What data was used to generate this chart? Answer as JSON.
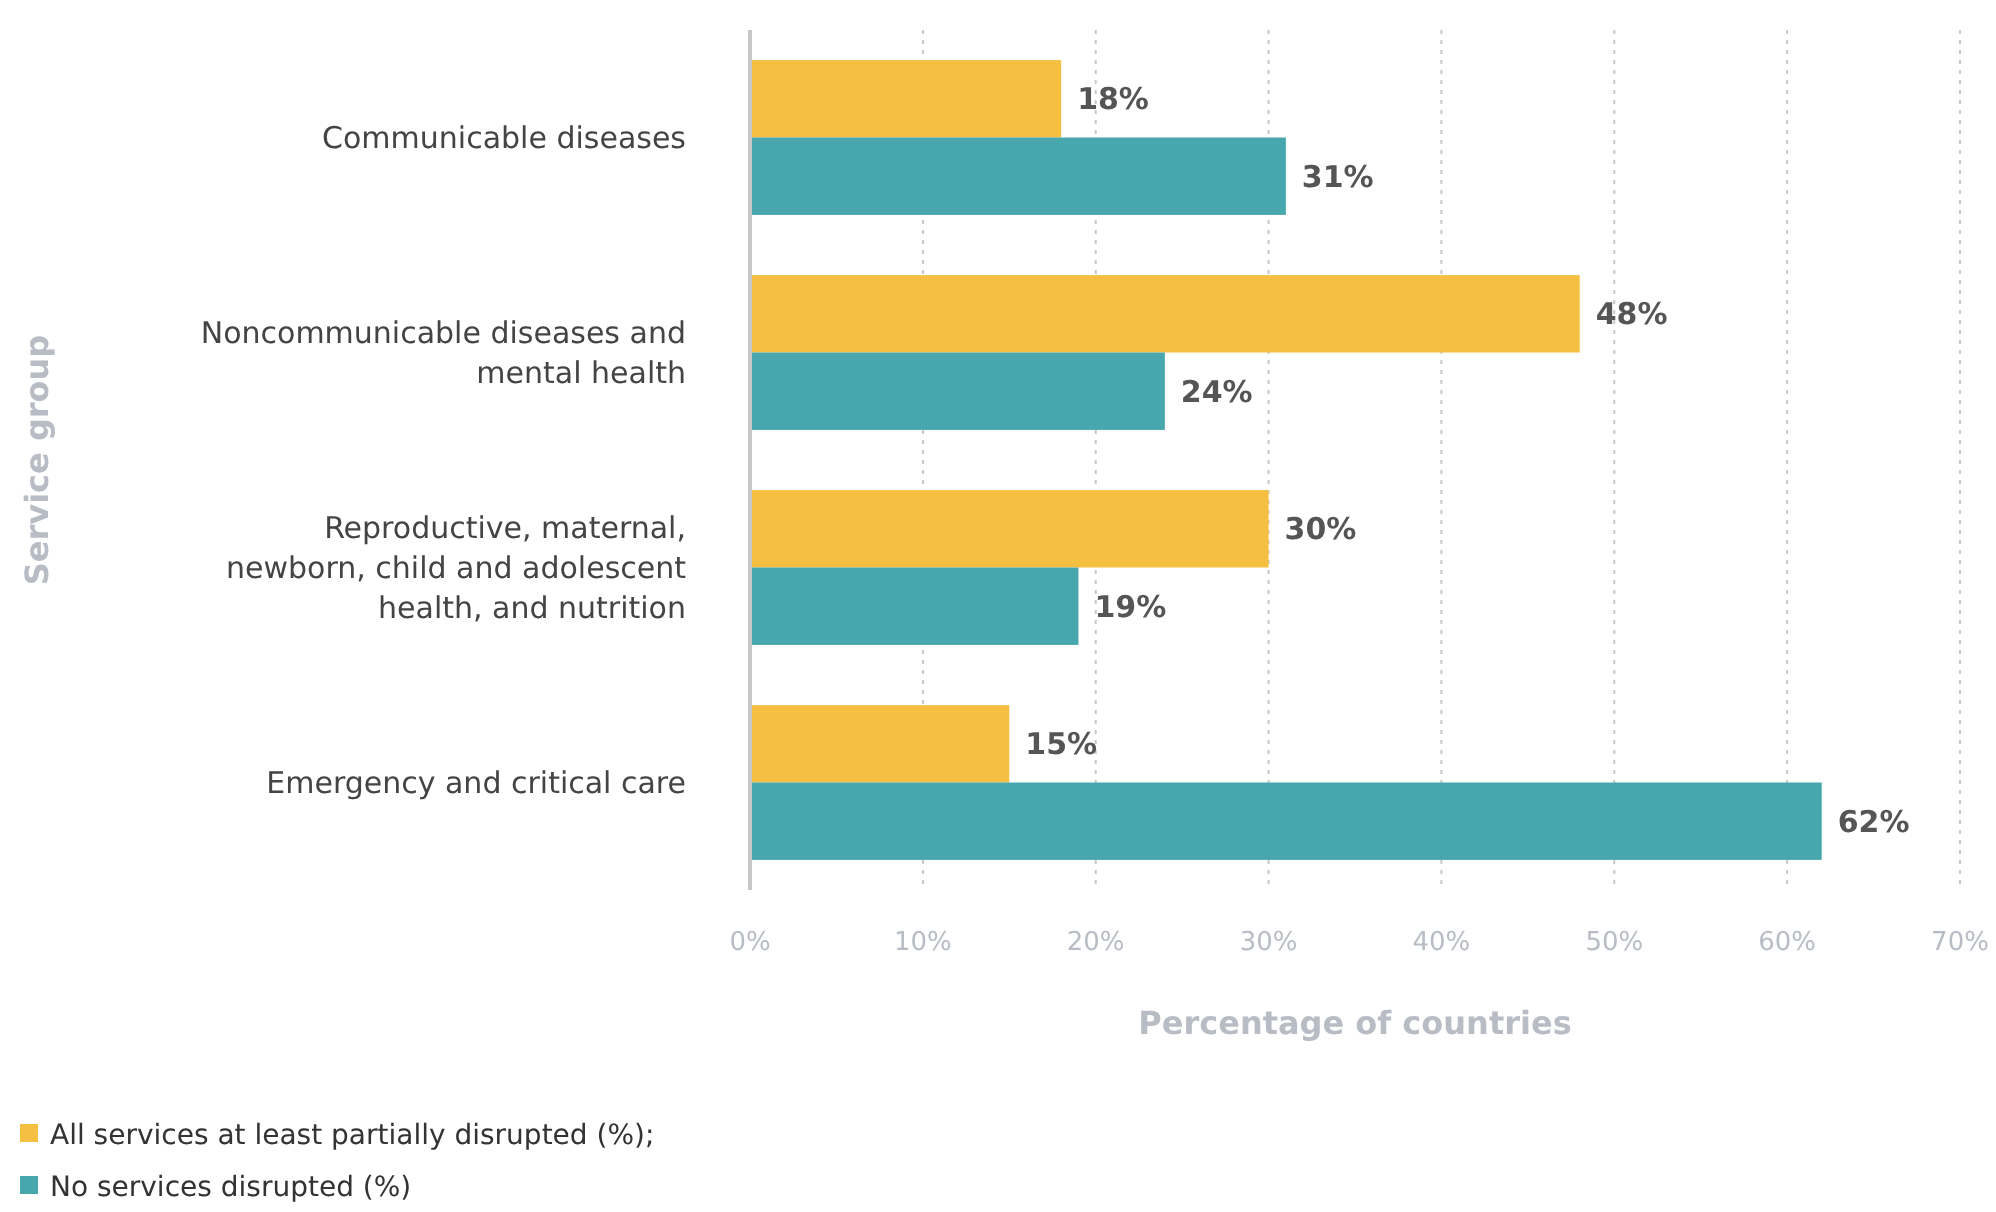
{
  "chart_data": {
    "type": "bar",
    "orientation": "horizontal",
    "xlabel": "Percentage of countries",
    "ylabel": "Service group",
    "categories": [
      "Communicable diseases",
      "Noncommunicable diseases and mental health",
      "Reproductive, maternal, newborn, child and adolescent health, and nutrition",
      "Emergency and critical care"
    ],
    "series": [
      {
        "name": "All services at least partially disrupted (%);",
        "color": "#f5c042",
        "values": [
          18,
          48,
          30,
          15
        ],
        "value_labels": [
          "18%",
          "48%",
          "30%",
          "15%"
        ]
      },
      {
        "name": "No services disrupted (%)",
        "color": "#48a6ad",
        "values": [
          31,
          24,
          19,
          62
        ],
        "value_labels": [
          "31%",
          "24%",
          "19%",
          "62%"
        ]
      }
    ],
    "xlim": [
      0,
      70
    ],
    "xticks": [
      {
        "value": 0,
        "label": "0%"
      },
      {
        "value": 10,
        "label": "10%"
      },
      {
        "value": 20,
        "label": "20%"
      },
      {
        "value": 30,
        "label": "30%"
      },
      {
        "value": 40,
        "label": "40%"
      },
      {
        "value": 50,
        "label": "50%"
      },
      {
        "value": 60,
        "label": "60%"
      },
      {
        "value": 70,
        "label": "70%"
      }
    ],
    "grid": "x",
    "legend": "bottom"
  }
}
